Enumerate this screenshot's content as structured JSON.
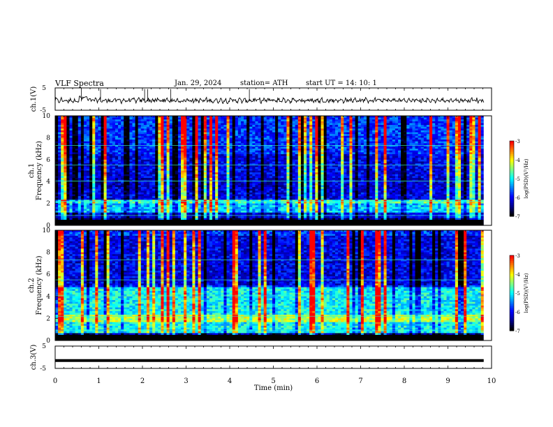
{
  "header": {
    "title": "VLF  Spectra",
    "date": "Jan. 29, 2024",
    "station": "station= ATH",
    "start": "start  UT  =   14: 10: 1"
  },
  "chart_data": [
    {
      "type": "line",
      "name": "ch.1",
      "ylabel": "ch.1(V)",
      "ylim": [
        -5,
        5
      ],
      "yticks": [
        "5",
        "-5"
      ],
      "xlim": [
        0,
        10
      ],
      "description_values": "noisy voltage trace around -0.5 V"
    },
    {
      "type": "heatmap",
      "name": "ch.1 spectrogram",
      "ylabel_lines": [
        "ch.1",
        "Frequency  (kHz)"
      ],
      "ylim": [
        0,
        10
      ],
      "yticks": [
        "0",
        "2",
        "4",
        "6",
        "8",
        "10"
      ],
      "xlim": [
        0,
        9.82
      ],
      "colorbar": {
        "label": "log(PSD)(V²/Hz)",
        "ticks": [
          "-3",
          "-4",
          "-5",
          "-6",
          "-7"
        ],
        "range": [
          -7,
          -3
        ]
      }
    },
    {
      "type": "heatmap",
      "name": "ch.2 spectrogram",
      "ylabel_lines": [
        "ch.2",
        "Frequency  (kHz)"
      ],
      "ylim": [
        0,
        10
      ],
      "yticks": [
        "0",
        "2",
        "4",
        "6",
        "8",
        "10"
      ],
      "xlim": [
        0,
        9.82
      ],
      "colorbar": {
        "label": "log(PSD)(V²/Hz)",
        "ticks": [
          "-3",
          "-4",
          "-5",
          "-6",
          "-7"
        ],
        "range": [
          -7,
          -3
        ]
      }
    },
    {
      "type": "line",
      "name": "ch.3",
      "ylabel": "ch.3(V)",
      "ylim": [
        -5,
        5
      ],
      "yticks": [
        "5",
        "-5"
      ],
      "xlim": [
        0,
        10
      ],
      "constant_value": -1.5
    }
  ],
  "xaxis": {
    "label": "Time  (min)",
    "ticks": [
      "0",
      "1",
      "2",
      "3",
      "4",
      "5",
      "6",
      "7",
      "8",
      "9",
      "10"
    ]
  },
  "colors": {
    "jet": [
      "#000000",
      "#00008f",
      "#0000ff",
      "#0080ff",
      "#00ffff",
      "#80ff80",
      "#ffff00",
      "#ff8000",
      "#ff0000"
    ]
  }
}
